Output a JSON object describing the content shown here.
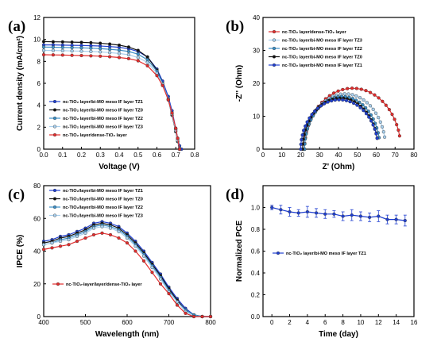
{
  "chart_data": [
    {
      "panel": "(a)",
      "type": "line",
      "xlabel": "Voltage (V)",
      "ylabel": "Current density (mA/cm²)",
      "xlim": [
        0.0,
        0.8
      ],
      "ylim": [
        0,
        12
      ],
      "xticks": [
        "0.0",
        "0.1",
        "0.2",
        "0.3",
        "0.4",
        "0.5",
        "0.6",
        "0.7",
        "0.8"
      ],
      "yticks": [
        "0",
        "2",
        "4",
        "6",
        "8",
        "10",
        "12"
      ],
      "legend_position": "bottom-left",
      "series": [
        {
          "name": "nc-TiO₂ layer/bi-MO meso IF layer TZ1",
          "color": "#1f3fd1",
          "marker": "circle",
          "x": [
            0.0,
            0.05,
            0.1,
            0.15,
            0.2,
            0.25,
            0.3,
            0.35,
            0.4,
            0.45,
            0.5,
            0.55,
            0.6,
            0.63,
            0.66,
            0.68,
            0.7,
            0.71,
            0.72,
            0.73
          ],
          "y": [
            9.5,
            9.5,
            9.48,
            9.46,
            9.45,
            9.43,
            9.4,
            9.35,
            9.28,
            9.15,
            8.9,
            8.4,
            7.3,
            6.2,
            4.8,
            3.5,
            1.9,
            1.0,
            0.3,
            0.0
          ]
        },
        {
          "name": "nc-TiO₂ layer/bi-MO meso IF layer TZ0",
          "color": "#111111",
          "marker": "circle",
          "x": [
            0.0,
            0.05,
            0.1,
            0.15,
            0.2,
            0.25,
            0.3,
            0.35,
            0.4,
            0.45,
            0.5,
            0.55,
            0.6,
            0.63,
            0.66,
            0.68,
            0.7,
            0.71,
            0.72
          ],
          "y": [
            9.8,
            9.78,
            9.77,
            9.75,
            9.73,
            9.7,
            9.65,
            9.58,
            9.48,
            9.3,
            9.0,
            8.4,
            7.2,
            6.0,
            4.5,
            3.1,
            1.6,
            0.7,
            0.0
          ]
        },
        {
          "name": "nc-TiO₂ layer/bi-MO meso IF layer TZ2",
          "color": "#3b8fc7",
          "marker": "circle",
          "x": [
            0.0,
            0.05,
            0.1,
            0.15,
            0.2,
            0.25,
            0.3,
            0.35,
            0.4,
            0.45,
            0.5,
            0.55,
            0.6,
            0.63,
            0.66,
            0.68,
            0.7,
            0.71,
            0.72
          ],
          "y": [
            9.3,
            9.29,
            9.27,
            9.25,
            9.23,
            9.2,
            9.16,
            9.1,
            9.02,
            8.9,
            8.65,
            8.15,
            7.1,
            6.0,
            4.6,
            3.3,
            1.8,
            0.9,
            0.1
          ]
        },
        {
          "name": "nc-TiO₂ layer/bi-MO meso IF layer TZ3",
          "color": "#a9d0ee",
          "marker": "circle",
          "x": [
            0.0,
            0.05,
            0.1,
            0.15,
            0.2,
            0.25,
            0.3,
            0.35,
            0.4,
            0.45,
            0.5,
            0.55,
            0.6,
            0.63,
            0.66,
            0.68,
            0.7,
            0.71,
            0.72
          ],
          "y": [
            9.0,
            8.99,
            8.97,
            8.95,
            8.93,
            8.9,
            8.86,
            8.8,
            8.72,
            8.6,
            8.35,
            7.9,
            6.9,
            5.9,
            4.5,
            3.2,
            1.7,
            0.8,
            0.0
          ]
        },
        {
          "name": "nc-TiO₂ layer/dense-TiO₂ layer",
          "color": "#e32c2c",
          "marker": "circle",
          "x": [
            0.0,
            0.05,
            0.1,
            0.15,
            0.2,
            0.25,
            0.3,
            0.35,
            0.4,
            0.45,
            0.5,
            0.55,
            0.6,
            0.63,
            0.66,
            0.68,
            0.7,
            0.71,
            0.72
          ],
          "y": [
            8.6,
            8.59,
            8.57,
            8.55,
            8.53,
            8.5,
            8.47,
            8.42,
            8.35,
            8.25,
            8.05,
            7.6,
            6.7,
            5.8,
            4.5,
            3.3,
            1.9,
            1.0,
            0.0
          ]
        }
      ]
    },
    {
      "panel": "(b)",
      "type": "scatter",
      "xlabel": "Z' (Ohm)",
      "ylabel": "-Z'' (Ohm)",
      "xlim": [
        0,
        80
      ],
      "ylim": [
        0,
        40
      ],
      "xticks": [
        "0",
        "10",
        "20",
        "30",
        "40",
        "50",
        "60",
        "70",
        "80"
      ],
      "yticks": [
        "0",
        "10",
        "20",
        "30",
        "40"
      ],
      "legend_position": "top-left",
      "series": [
        {
          "name": "nc-TiO₂ layer/dense-TiO₂ layer",
          "color": "#e32c2c",
          "center": 47.5,
          "radius": 25.5,
          "peak": 18.5
        },
        {
          "name": "nc-TiO₂ layer/bi-MO meso IF layer TZ3",
          "color": "#a9d0ee",
          "center": 43.5,
          "radius": 21.5,
          "peak": 16.8
        },
        {
          "name": "nc-TiO₂ layer/bi-MO meso IF layer TZ2",
          "color": "#3b8fc7",
          "center": 42.0,
          "radius": 20.0,
          "peak": 16.0
        },
        {
          "name": "nc-TiO₂ layer/bi-MO meso IF layer TZ0",
          "color": "#111111",
          "center": 41.0,
          "radius": 20.0,
          "peak": 15.5
        },
        {
          "name": "nc-TiO₂ layer/bi-MO meso IF layer TZ1",
          "color": "#1f3fd1",
          "center": 40.5,
          "radius": 20.5,
          "peak": 15.0
        }
      ]
    },
    {
      "panel": "(c)",
      "type": "line",
      "xlabel": "Wavelength (nm)",
      "ylabel": "IPCE (%)",
      "xlim": [
        400,
        800
      ],
      "ylim": [
        0,
        80
      ],
      "xticks": [
        "400",
        "500",
        "600",
        "700",
        "800"
      ],
      "yticks": [
        "0",
        "20",
        "40",
        "60",
        "80"
      ],
      "legend_position": "top-left",
      "x": [
        400,
        420,
        440,
        460,
        480,
        500,
        520,
        540,
        560,
        580,
        600,
        620,
        640,
        660,
        680,
        700,
        720,
        740,
        760,
        780,
        800
      ],
      "series": [
        {
          "name": "nc-TiO₂/layer/bi-MO meso IF layer TZ1",
          "color": "#1f3fd1",
          "values": [
            46,
            47,
            49,
            50,
            52,
            54,
            57,
            58,
            57,
            55,
            51,
            46,
            40,
            33,
            26,
            18,
            11,
            5,
            1,
            0,
            0
          ]
        },
        {
          "name": "nc-TiO₂/layer/bi-MO meso IF layer TZ0",
          "color": "#111111",
          "values": [
            45,
            46,
            48,
            49,
            51,
            53,
            56,
            57,
            56,
            54,
            50,
            45,
            39,
            32,
            25,
            17,
            10,
            4,
            1,
            0,
            0
          ]
        },
        {
          "name": "nc-TiO₂/layer/bi-MO meso IF layer TZ2",
          "color": "#3b8fc7",
          "values": [
            44,
            45,
            47,
            48,
            50,
            52,
            55,
            56,
            55,
            53,
            49,
            44,
            38,
            31,
            24,
            16,
            9,
            4,
            1,
            0,
            0
          ]
        },
        {
          "name": "nc-TiO₂/layer/bi-MO meso IF layer TZ3",
          "color": "#a9d0ee",
          "values": [
            44,
            45,
            46,
            47,
            49,
            51,
            54,
            55,
            54,
            52,
            48,
            43,
            37,
            30,
            23,
            15,
            9,
            3,
            0,
            0,
            0
          ]
        },
        {
          "name": "nc-TiO₂-layer/layer/dense-TiO₂ layer",
          "color": "#e32c2c",
          "values": [
            41,
            42,
            43,
            44,
            46,
            48,
            50,
            51,
            50,
            48,
            45,
            40,
            34,
            27,
            20,
            14,
            7,
            2,
            0,
            0,
            0
          ]
        }
      ]
    },
    {
      "panel": "(d)",
      "type": "scatter",
      "xlabel": "Time (day)",
      "ylabel": "Normalized PCE",
      "xlim": [
        -1,
        16
      ],
      "ylim": [
        0.0,
        1.2
      ],
      "xticks": [
        "0",
        "2",
        "4",
        "6",
        "8",
        "10",
        "12",
        "14",
        "16"
      ],
      "yticks": [
        "0.0",
        "0.2",
        "0.4",
        "0.6",
        "0.8",
        "1.0"
      ],
      "legend_position": "center",
      "series": [
        {
          "name": "nc-TiO₂ layer/bi-MO meso IF layer TZ1",
          "color": "#1f3fd1",
          "x": [
            0,
            1,
            2,
            3,
            4,
            5,
            6,
            7,
            8,
            9,
            10,
            11,
            12,
            13,
            14,
            15
          ],
          "y": [
            1.0,
            0.98,
            0.96,
            0.95,
            0.96,
            0.95,
            0.94,
            0.94,
            0.92,
            0.93,
            0.92,
            0.91,
            0.92,
            0.89,
            0.89,
            0.88
          ],
          "err": [
            0.02,
            0.04,
            0.04,
            0.03,
            0.05,
            0.04,
            0.04,
            0.03,
            0.04,
            0.05,
            0.04,
            0.04,
            0.05,
            0.04,
            0.04,
            0.05
          ]
        }
      ]
    }
  ]
}
